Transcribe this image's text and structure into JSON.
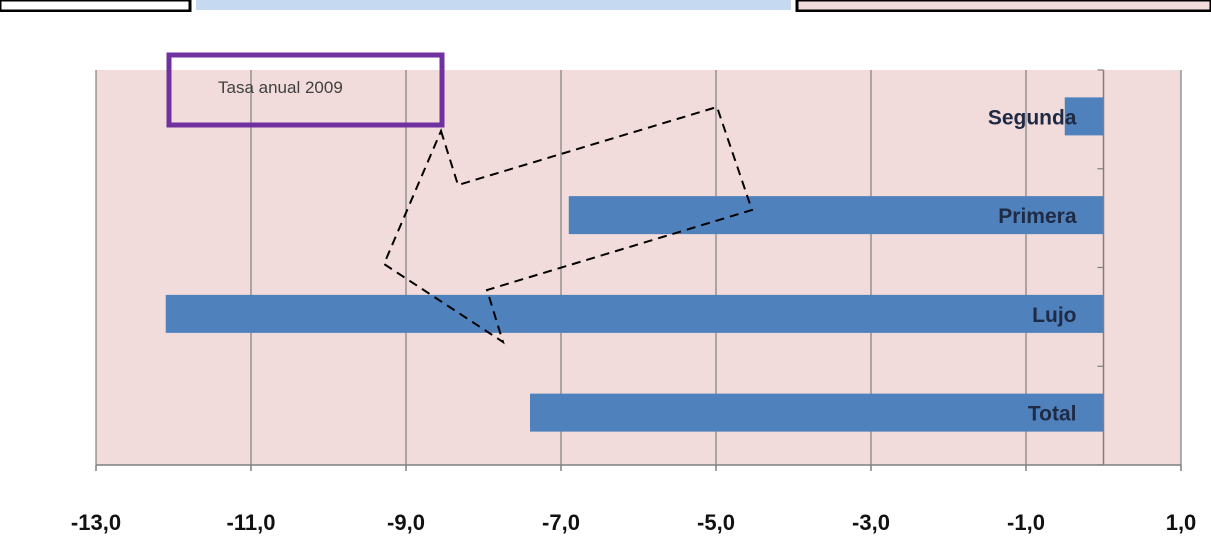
{
  "colors": {
    "plot_background": "#f2dcdb",
    "bar": "#4f81bd",
    "legend_border": "#7030a0",
    "grid": "#7f7f7f",
    "strip_left": "#000000",
    "strip_mid": "#c5d9f1",
    "strip_right": "#f2dcdb"
  },
  "chart_data": {
    "type": "bar",
    "orientation": "horizontal",
    "categories": [
      "Segunda",
      "Primera",
      "Lujo",
      "Total"
    ],
    "values": [
      -0.5,
      -6.9,
      -12.1,
      -7.4
    ],
    "xlim": [
      -13,
      1
    ],
    "xticks": [
      "-13,0",
      "-11,0",
      "-9,0",
      "-7,0",
      "-5,0",
      "-3,0",
      "-1,0",
      "1,0"
    ],
    "xtick_values": [
      -13,
      -11,
      -9,
      -7,
      -5,
      -3,
      -1,
      1
    ],
    "grid": "vertical",
    "annotation": "Tasa anual 2009",
    "arrow": "dashed outline arrow pointing down-left"
  }
}
